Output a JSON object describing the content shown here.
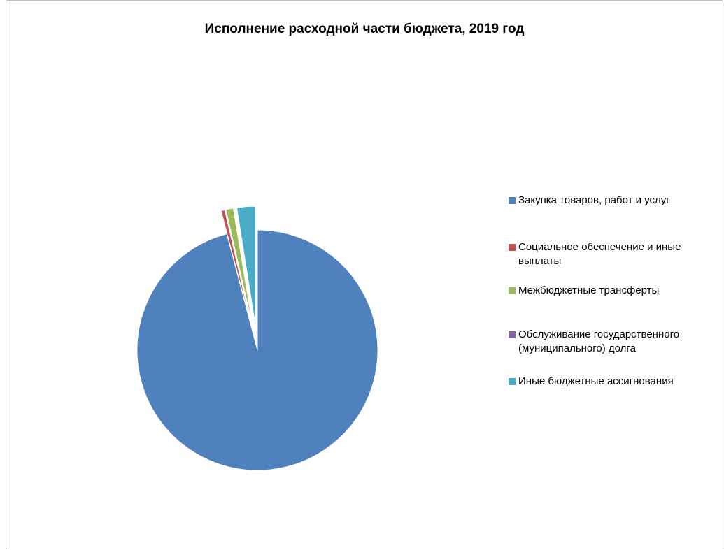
{
  "chart_data": {
    "type": "pie",
    "title": "Исполнение расходной части бюджета, 2019 год",
    "categories": [
      "Закупка товаров, работ и услуг",
      "Социальное обеспечение и иные выплаты",
      "Межбюджетные трансферты",
      "Обслуживание государственного (муниципального) долга",
      "Иные бюджетные ассигнования"
    ],
    "values": [
      95.9,
      0.5,
      1.0,
      0.1,
      2.5
    ],
    "colors": [
      "#4f81bd",
      "#c0504d",
      "#9bbb59",
      "#8064a2",
      "#4bacc6"
    ],
    "legend_position": "right",
    "exploded_slices": [
      1,
      2,
      3,
      4
    ]
  },
  "legend": {
    "items": [
      {
        "label": "Закупка товаров, работ и услуг",
        "color": "#4f81bd"
      },
      {
        "label": "Социальное обеспечение и иные выплаты",
        "color": "#c0504d"
      },
      {
        "label": "Межбюджетные трансферты",
        "color": "#9bbb59"
      },
      {
        "label": "Обслуживание государственного (муниципального) долга",
        "color": "#8064a2"
      },
      {
        "label": "Иные бюджетные ассигнования",
        "color": "#4bacc6"
      }
    ]
  }
}
